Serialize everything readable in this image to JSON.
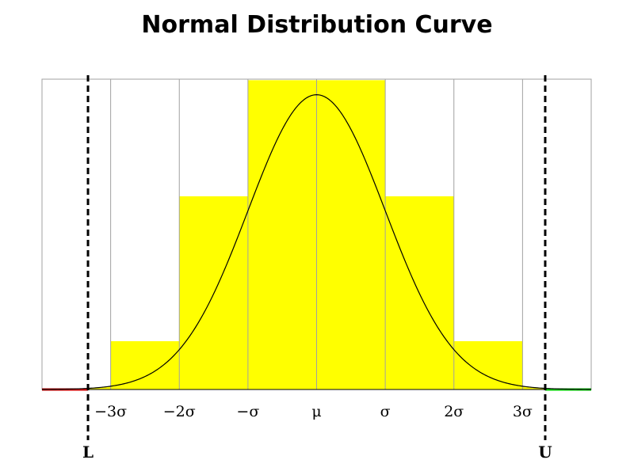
{
  "chart_data": {
    "type": "bar",
    "title": "Normal Distribution Curve",
    "xlabel": "",
    "ylabel": "",
    "xlim": [
      -4,
      4
    ],
    "ylim": [
      0,
      0.42
    ],
    "grid": true,
    "categories": [
      "-3σ..-2σ",
      "-2σ..-σ",
      "-σ..μ",
      "μ..σ",
      "σ..2σ",
      "2σ..3σ"
    ],
    "x_edges": [
      -3,
      -2,
      -1,
      0,
      1,
      2,
      3
    ],
    "values": [
      0.0654,
      0.2615,
      0.4186,
      0.4186,
      0.2615,
      0.0654
    ],
    "bar_color": "#ffff00",
    "curve": {
      "type": "line",
      "function": "normal_pdf",
      "mean": 0,
      "sd": 1,
      "color": "#000000"
    },
    "tail_colors": {
      "lower": "#cc0000",
      "upper": "#00cc00"
    },
    "ticks": [
      {
        "x": -3,
        "label": "−3σ"
      },
      {
        "x": -2,
        "label": "−2σ"
      },
      {
        "x": -1,
        "label": "−σ"
      },
      {
        "x": 0,
        "label": "μ"
      },
      {
        "x": 1,
        "label": "σ"
      },
      {
        "x": 2,
        "label": "2σ"
      },
      {
        "x": 3,
        "label": "3σ"
      }
    ],
    "limits": [
      {
        "x": -3.33,
        "label": "L"
      },
      {
        "x": 3.33,
        "label": "U"
      }
    ],
    "grid_color": "#a0a0a0"
  }
}
